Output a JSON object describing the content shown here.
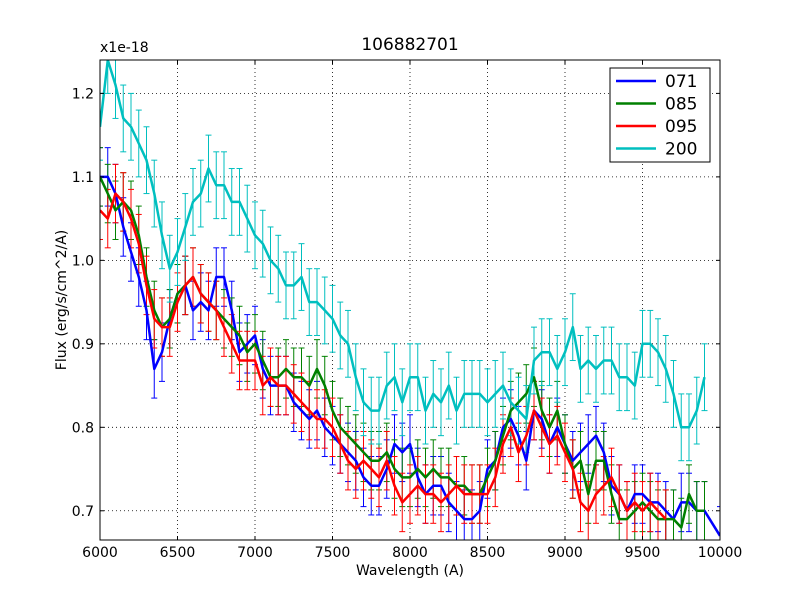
{
  "chart_data": {
    "type": "line",
    "title": "106882701",
    "xlabel": "Wavelength (A)",
    "ylabel": "Flux (erg/s/cm^2/A)",
    "y_offset_label": "x1e-18",
    "xlim": [
      6000,
      10000
    ],
    "ylim": [
      0.665,
      1.24
    ],
    "x_ticks": [
      6000,
      6500,
      7000,
      7500,
      8000,
      8500,
      9000,
      9500,
      10000
    ],
    "x_tick_labels": [
      "6000",
      "6500",
      "7000",
      "7500",
      "8000",
      "8500",
      "9000",
      "9500",
      "10000"
    ],
    "y_ticks": [
      0.7,
      0.8,
      0.9,
      1.0,
      1.1,
      1.2
    ],
    "y_tick_labels": [
      "0.7",
      "0.8",
      "0.9",
      "1.0",
      "1.1",
      "1.2"
    ],
    "grid": true,
    "legend_position": "top-right",
    "series": [
      {
        "name": "071",
        "color": "#0000ff",
        "x": [
          6000,
          6050,
          6100,
          6150,
          6200,
          6250,
          6300,
          6350,
          6400,
          6450,
          6500,
          6550,
          6600,
          6650,
          6700,
          6750,
          6800,
          6850,
          6900,
          6950,
          7000,
          7050,
          7100,
          7150,
          7200,
          7250,
          7300,
          7350,
          7400,
          7450,
          7500,
          7550,
          7600,
          7650,
          7700,
          7750,
          7800,
          7850,
          7900,
          7950,
          8000,
          8050,
          8100,
          8150,
          8200,
          8250,
          8300,
          8350,
          8400,
          8450,
          8500,
          8550,
          8600,
          8650,
          8700,
          8750,
          8800,
          8850,
          8900,
          8950,
          9000,
          9050,
          9100,
          9150,
          9200,
          9250,
          9300,
          9350,
          9400,
          9450,
          9500,
          9550,
          9600,
          9650,
          9700,
          9750,
          9800,
          9850,
          9900,
          10000
        ],
        "values": [
          1.1,
          1.1,
          1.08,
          1.04,
          1.01,
          0.98,
          0.94,
          0.87,
          0.89,
          0.93,
          0.96,
          0.97,
          0.94,
          0.95,
          0.94,
          0.98,
          0.98,
          0.94,
          0.89,
          0.9,
          0.91,
          0.87,
          0.85,
          0.85,
          0.85,
          0.83,
          0.82,
          0.81,
          0.82,
          0.8,
          0.79,
          0.78,
          0.77,
          0.76,
          0.74,
          0.73,
          0.73,
          0.75,
          0.78,
          0.77,
          0.78,
          0.74,
          0.72,
          0.73,
          0.73,
          0.71,
          0.7,
          0.69,
          0.69,
          0.7,
          0.75,
          0.76,
          0.8,
          0.81,
          0.79,
          0.76,
          0.82,
          0.81,
          0.78,
          0.8,
          0.78,
          0.76,
          0.77,
          0.78,
          0.79,
          0.77,
          0.73,
          0.72,
          0.7,
          0.72,
          0.72,
          0.71,
          0.71,
          0.7,
          0.69,
          0.71,
          0.71,
          0.7,
          0.7,
          0.67
        ],
        "error": 0.035
      },
      {
        "name": "085",
        "color": "#008000",
        "x": [
          6000,
          6050,
          6100,
          6150,
          6200,
          6250,
          6300,
          6350,
          6400,
          6450,
          6500,
          6550,
          6600,
          6650,
          6700,
          6750,
          6800,
          6850,
          6900,
          6950,
          7000,
          7050,
          7100,
          7150,
          7200,
          7250,
          7300,
          7350,
          7400,
          7450,
          7500,
          7550,
          7600,
          7650,
          7700,
          7750,
          7800,
          7850,
          7900,
          7950,
          8000,
          8050,
          8100,
          8150,
          8200,
          8250,
          8300,
          8350,
          8400,
          8450,
          8500,
          8550,
          8600,
          8650,
          8700,
          8750,
          8800,
          8850,
          8900,
          8950,
          9000,
          9050,
          9100,
          9150,
          9200,
          9250,
          9300,
          9350,
          9400,
          9450,
          9500,
          9550,
          9600,
          9650,
          9700,
          9750,
          9800,
          9850,
          9900
        ],
        "values": [
          1.1,
          1.08,
          1.06,
          1.07,
          1.06,
          1.03,
          0.98,
          0.94,
          0.92,
          0.93,
          0.96,
          0.97,
          0.98,
          0.96,
          0.95,
          0.94,
          0.93,
          0.92,
          0.91,
          0.89,
          0.9,
          0.88,
          0.86,
          0.86,
          0.87,
          0.86,
          0.86,
          0.85,
          0.87,
          0.85,
          0.82,
          0.8,
          0.79,
          0.78,
          0.77,
          0.76,
          0.76,
          0.77,
          0.75,
          0.74,
          0.74,
          0.75,
          0.74,
          0.75,
          0.74,
          0.74,
          0.73,
          0.73,
          0.72,
          0.72,
          0.74,
          0.76,
          0.79,
          0.82,
          0.83,
          0.84,
          0.86,
          0.82,
          0.8,
          0.82,
          0.78,
          0.75,
          0.76,
          0.72,
          0.76,
          0.76,
          0.72,
          0.69,
          0.69,
          0.7,
          0.71,
          0.7,
          0.69,
          0.69,
          0.69,
          0.68,
          0.72,
          0.7,
          0.7
        ],
        "error": 0.035
      },
      {
        "name": "095",
        "color": "#ff0000",
        "x": [
          6000,
          6050,
          6100,
          6150,
          6200,
          6250,
          6300,
          6350,
          6400,
          6450,
          6500,
          6550,
          6600,
          6650,
          6700,
          6750,
          6800,
          6850,
          6900,
          6950,
          7000,
          7050,
          7100,
          7150,
          7200,
          7250,
          7300,
          7350,
          7400,
          7450,
          7500,
          7550,
          7600,
          7650,
          7700,
          7750,
          7800,
          7850,
          7900,
          7950,
          8000,
          8050,
          8100,
          8150,
          8200,
          8250,
          8300,
          8350,
          8400,
          8450,
          8500,
          8550,
          8600,
          8650,
          8700,
          8750,
          8800,
          8850,
          8900,
          8950,
          9000,
          9050,
          9100,
          9150,
          9200,
          9250,
          9300,
          9350,
          9400,
          9450,
          9500,
          9550,
          9600,
          9650
        ],
        "values": [
          1.06,
          1.05,
          1.08,
          1.07,
          1.05,
          1.02,
          0.97,
          0.93,
          0.92,
          0.92,
          0.95,
          0.97,
          0.98,
          0.96,
          0.95,
          0.94,
          0.92,
          0.9,
          0.88,
          0.88,
          0.88,
          0.85,
          0.86,
          0.85,
          0.85,
          0.84,
          0.83,
          0.82,
          0.81,
          0.81,
          0.8,
          0.78,
          0.76,
          0.75,
          0.76,
          0.75,
          0.74,
          0.76,
          0.73,
          0.71,
          0.72,
          0.73,
          0.72,
          0.72,
          0.71,
          0.72,
          0.73,
          0.72,
          0.72,
          0.72,
          0.72,
          0.74,
          0.78,
          0.8,
          0.77,
          0.79,
          0.82,
          0.8,
          0.78,
          0.79,
          0.77,
          0.75,
          0.71,
          0.7,
          0.72,
          0.73,
          0.74,
          0.72,
          0.7,
          0.71,
          0.7,
          0.71,
          0.7,
          0.69
        ],
        "error": 0.035
      },
      {
        "name": "200",
        "color": "#00bfbf",
        "x": [
          6000,
          6050,
          6100,
          6150,
          6200,
          6250,
          6300,
          6350,
          6400,
          6450,
          6500,
          6550,
          6600,
          6650,
          6700,
          6750,
          6800,
          6850,
          6900,
          6950,
          7000,
          7050,
          7100,
          7150,
          7200,
          7250,
          7300,
          7350,
          7400,
          7450,
          7500,
          7550,
          7600,
          7650,
          7700,
          7750,
          7800,
          7850,
          7900,
          7950,
          8000,
          8050,
          8100,
          8150,
          8200,
          8250,
          8300,
          8350,
          8400,
          8450,
          8500,
          8550,
          8600,
          8650,
          8700,
          8750,
          8800,
          8850,
          8900,
          8950,
          9000,
          9050,
          9100,
          9150,
          9200,
          9250,
          9300,
          9350,
          9400,
          9450,
          9500,
          9550,
          9600,
          9650,
          9700,
          9750,
          9800,
          9850,
          9900
        ],
        "values": [
          1.16,
          1.24,
          1.21,
          1.17,
          1.16,
          1.14,
          1.12,
          1.08,
          1.03,
          0.99,
          1.01,
          1.04,
          1.07,
          1.08,
          1.11,
          1.09,
          1.09,
          1.07,
          1.07,
          1.05,
          1.03,
          1.02,
          1.0,
          0.99,
          0.97,
          0.97,
          0.98,
          0.95,
          0.95,
          0.94,
          0.93,
          0.91,
          0.9,
          0.86,
          0.83,
          0.82,
          0.82,
          0.85,
          0.86,
          0.83,
          0.86,
          0.86,
          0.82,
          0.84,
          0.83,
          0.85,
          0.82,
          0.84,
          0.84,
          0.84,
          0.83,
          0.84,
          0.85,
          0.83,
          0.82,
          0.81,
          0.88,
          0.89,
          0.89,
          0.87,
          0.89,
          0.92,
          0.87,
          0.88,
          0.87,
          0.88,
          0.88,
          0.86,
          0.86,
          0.85,
          0.9,
          0.9,
          0.89,
          0.87,
          0.84,
          0.8,
          0.8,
          0.82,
          0.86
        ],
        "error": 0.04
      }
    ]
  }
}
